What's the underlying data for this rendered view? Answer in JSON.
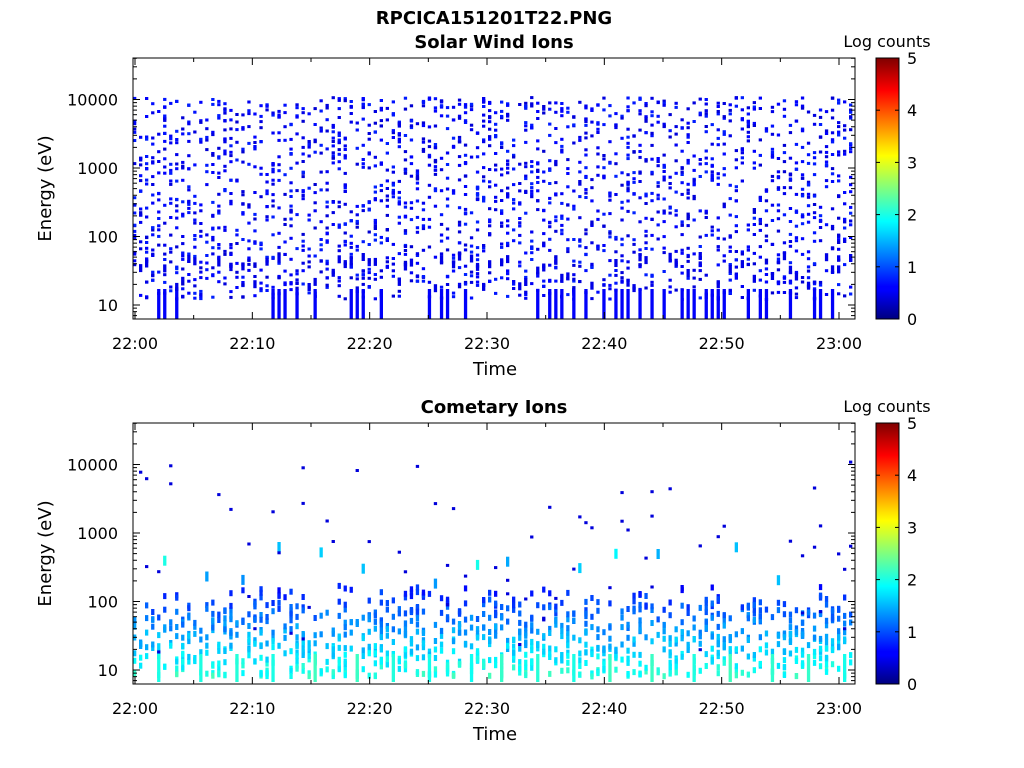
{
  "figure_title": "RPCICA151201T22.PNG",
  "chart_data": [
    {
      "type": "heatmap",
      "title": "Solar Wind Ions",
      "xlabel": "Time",
      "ylabel": "Energy (eV)",
      "y_scale": "log",
      "ylim": [
        6,
        45000
      ],
      "x_ticks": [
        "22:00",
        "22:10",
        "22:20",
        "22:30",
        "22:40",
        "22:50",
        "23:00"
      ],
      "y_ticks": [
        "10",
        "100",
        "1000",
        "10000"
      ],
      "colorbar": {
        "label": "Log counts",
        "range": [
          0,
          5
        ],
        "ticks": [
          "0",
          "1",
          "2",
          "3",
          "4",
          "5"
        ],
        "colormap": "jet"
      },
      "distribution": "sparse scattered single-count pixels across 10 eV - 20000 eV, denser low-count streaks near 10 eV"
    },
    {
      "type": "heatmap",
      "title": "Cometary Ions",
      "xlabel": "Time",
      "ylabel": "Energy (eV)",
      "y_scale": "log",
      "ylim": [
        6,
        45000
      ],
      "x_ticks": [
        "22:00",
        "22:10",
        "22:20",
        "22:30",
        "22:40",
        "22:50",
        "23:00"
      ],
      "y_ticks": [
        "10",
        "100",
        "1000",
        "10000"
      ],
      "colorbar": {
        "label": "Log counts",
        "range": [
          0,
          5
        ],
        "ticks": [
          "0",
          "1",
          "2",
          "3",
          "4",
          "5"
        ],
        "colormap": "jet"
      },
      "distribution": "periodic dispersed bursts every ~3-4 minutes extending from ~10 eV up to ~200-600 eV, peak log counts ~2 near 10 eV"
    }
  ]
}
